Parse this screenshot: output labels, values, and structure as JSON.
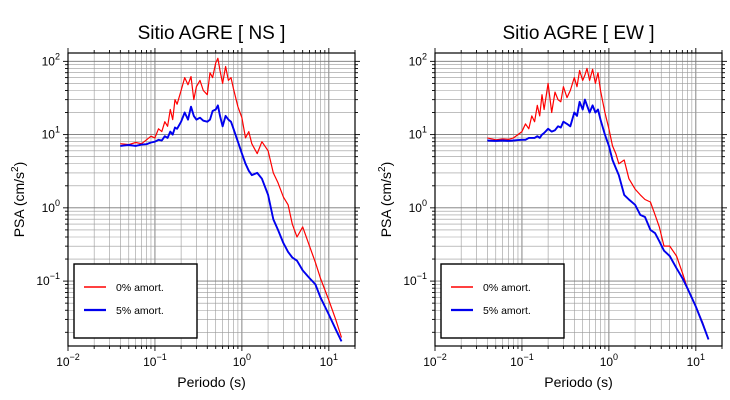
{
  "chart_data": [
    {
      "type": "line",
      "title": "Sitio AGRE [ NS ]",
      "xlabel": "Periodo (s)",
      "ylabel": "PSA (cm/s²)",
      "ylabel_base": "PSA (cm/s",
      "ylabel_sup": "2",
      "ylabel_close": ")",
      "xscale": "log",
      "yscale": "log",
      "xlim": [
        0.01,
        20
      ],
      "ylim": [
        0.013,
        130
      ],
      "grid": true,
      "legend_position": "bottom-left",
      "xticks": [
        {
          "base": "10",
          "exp": "−2"
        },
        {
          "base": "10",
          "exp": "−1"
        },
        {
          "base": "10",
          "exp": "0"
        },
        {
          "base": "10",
          "exp": "1"
        }
      ],
      "yticks": [
        {
          "base": "10",
          "exp": "−1"
        },
        {
          "base": "10",
          "exp": "0"
        },
        {
          "base": "10",
          "exp": "1"
        },
        {
          "base": "10",
          "exp": "2"
        }
      ],
      "series": [
        {
          "name": "0% amort.",
          "color": "#ff0000",
          "x": [
            0.04,
            0.05,
            0.06,
            0.07,
            0.08,
            0.09,
            0.1,
            0.11,
            0.12,
            0.13,
            0.14,
            0.15,
            0.16,
            0.17,
            0.18,
            0.2,
            0.22,
            0.24,
            0.26,
            0.28,
            0.3,
            0.33,
            0.36,
            0.4,
            0.43,
            0.46,
            0.5,
            0.53,
            0.56,
            0.6,
            0.65,
            0.7,
            0.75,
            0.8,
            0.9,
            1.0,
            1.1,
            1.2,
            1.3,
            1.5,
            1.7,
            2.0,
            2.3,
            2.6,
            3.0,
            3.4,
            3.8,
            4.3,
            5.0,
            6.0,
            7.0,
            8.0,
            10.0,
            12.0,
            14.0
          ],
          "y": [
            7.5,
            7.3,
            7.8,
            7.5,
            8.5,
            9.5,
            9.0,
            12.0,
            11.0,
            15.0,
            13.0,
            22.0,
            16.0,
            30.0,
            26.0,
            40.0,
            60.0,
            48.0,
            62.0,
            30.0,
            45.0,
            55.0,
            40.0,
            35.0,
            70.0,
            60.0,
            95.0,
            110.0,
            75.0,
            50.0,
            85.0,
            55.0,
            60.0,
            42.0,
            24.0,
            17.0,
            9.0,
            11.0,
            7.5,
            5.5,
            8.0,
            6.0,
            3.0,
            2.2,
            1.4,
            1.1,
            0.6,
            0.4,
            0.55,
            0.3,
            0.18,
            0.11,
            0.055,
            0.03,
            0.017
          ]
        },
        {
          "name": "5% amort.",
          "color": "#0000ee",
          "x": [
            0.04,
            0.05,
            0.06,
            0.07,
            0.08,
            0.09,
            0.1,
            0.11,
            0.12,
            0.13,
            0.14,
            0.15,
            0.16,
            0.17,
            0.18,
            0.2,
            0.22,
            0.24,
            0.26,
            0.28,
            0.3,
            0.33,
            0.36,
            0.4,
            0.43,
            0.46,
            0.5,
            0.53,
            0.56,
            0.6,
            0.65,
            0.7,
            0.75,
            0.8,
            0.9,
            1.0,
            1.1,
            1.2,
            1.3,
            1.5,
            1.7,
            2.0,
            2.3,
            2.6,
            3.0,
            3.4,
            3.8,
            4.3,
            5.0,
            6.0,
            7.0,
            8.0,
            10.0,
            12.0,
            14.0
          ],
          "y": [
            7.0,
            7.2,
            7.0,
            7.3,
            7.4,
            7.8,
            8.0,
            8.5,
            8.3,
            9.5,
            9.0,
            11.0,
            10.0,
            12.5,
            12.0,
            15.0,
            20.0,
            16.0,
            24.0,
            18.0,
            16.0,
            17.0,
            15.5,
            15.0,
            16.0,
            21.0,
            22.0,
            25.0,
            18.0,
            13.0,
            18.0,
            16.0,
            15.0,
            12.0,
            8.0,
            5.5,
            4.0,
            3.2,
            2.8,
            3.0,
            2.5,
            1.5,
            0.7,
            0.5,
            0.33,
            0.25,
            0.21,
            0.19,
            0.14,
            0.11,
            0.09,
            0.06,
            0.035,
            0.022,
            0.015
          ]
        }
      ]
    },
    {
      "type": "line",
      "title": "Sitio AGRE [ EW ]",
      "xlabel": "Periodo (s)",
      "ylabel": "PSA (cm/s²)",
      "ylabel_base": "PSA (cm/s",
      "ylabel_sup": "2",
      "ylabel_close": ")",
      "xscale": "log",
      "yscale": "log",
      "xlim": [
        0.01,
        20
      ],
      "ylim": [
        0.013,
        130
      ],
      "grid": true,
      "legend_position": "bottom-left",
      "xticks": [
        {
          "base": "10",
          "exp": "−2"
        },
        {
          "base": "10",
          "exp": "−1"
        },
        {
          "base": "10",
          "exp": "0"
        },
        {
          "base": "10",
          "exp": "1"
        }
      ],
      "yticks": [
        {
          "base": "10",
          "exp": "−1"
        },
        {
          "base": "10",
          "exp": "0"
        },
        {
          "base": "10",
          "exp": "1"
        },
        {
          "base": "10",
          "exp": "2"
        }
      ],
      "series": [
        {
          "name": "0% amort.",
          "color": "#ff0000",
          "x": [
            0.04,
            0.05,
            0.06,
            0.07,
            0.08,
            0.09,
            0.1,
            0.11,
            0.12,
            0.13,
            0.14,
            0.15,
            0.16,
            0.17,
            0.18,
            0.2,
            0.22,
            0.24,
            0.26,
            0.28,
            0.3,
            0.33,
            0.36,
            0.4,
            0.43,
            0.46,
            0.5,
            0.53,
            0.56,
            0.6,
            0.65,
            0.7,
            0.75,
            0.8,
            0.9,
            1.0,
            1.1,
            1.2,
            1.3,
            1.5,
            1.7,
            2.0,
            2.3,
            2.6,
            3.0,
            3.4,
            3.8,
            4.3,
            5.0,
            6.0,
            7.0,
            8.0,
            10.0,
            12.0,
            14.0
          ],
          "y": [
            9.0,
            8.5,
            8.7,
            8.6,
            9.0,
            10.0,
            11.0,
            14.0,
            12.0,
            18.0,
            15.0,
            25.0,
            18.0,
            35.0,
            22.0,
            50.0,
            20.0,
            38.0,
            30.0,
            28.0,
            45.0,
            32.0,
            40.0,
            60.0,
            45.0,
            75.0,
            55.0,
            65.0,
            80.0,
            55.0,
            78.0,
            50.0,
            70.0,
            40.0,
            20.0,
            12.0,
            7.0,
            5.5,
            4.0,
            4.5,
            2.5,
            1.8,
            1.5,
            1.3,
            1.2,
            0.8,
            0.55,
            0.3,
            0.3,
            0.22,
            0.13,
            0.08,
            0.045,
            0.027,
            0.016
          ]
        },
        {
          "name": "5% amort.",
          "color": "#0000ee",
          "x": [
            0.04,
            0.05,
            0.06,
            0.07,
            0.08,
            0.09,
            0.1,
            0.11,
            0.12,
            0.13,
            0.14,
            0.15,
            0.16,
            0.17,
            0.18,
            0.2,
            0.22,
            0.24,
            0.26,
            0.28,
            0.3,
            0.33,
            0.36,
            0.4,
            0.43,
            0.46,
            0.5,
            0.53,
            0.56,
            0.6,
            0.65,
            0.7,
            0.75,
            0.8,
            0.9,
            1.0,
            1.1,
            1.2,
            1.3,
            1.5,
            1.7,
            2.0,
            2.3,
            2.6,
            3.0,
            3.4,
            3.8,
            4.3,
            5.0,
            6.0,
            7.0,
            8.0,
            10.0,
            12.0,
            14.0
          ],
          "y": [
            8.3,
            8.2,
            8.3,
            8.2,
            8.3,
            8.4,
            8.5,
            8.5,
            9.0,
            9.0,
            9.0,
            9.5,
            9.0,
            10.0,
            10.5,
            12.0,
            11.0,
            11.5,
            13.0,
            12.5,
            15.0,
            14.0,
            13.0,
            20.0,
            18.0,
            28.0,
            22.0,
            30.0,
            25.0,
            20.0,
            25.0,
            20.0,
            22.0,
            16.0,
            10.0,
            7.0,
            4.5,
            3.5,
            2.8,
            1.5,
            1.3,
            1.1,
            0.8,
            0.75,
            0.5,
            0.45,
            0.35,
            0.26,
            0.22,
            0.15,
            0.11,
            0.08,
            0.045,
            0.026,
            0.016
          ]
        }
      ]
    }
  ]
}
